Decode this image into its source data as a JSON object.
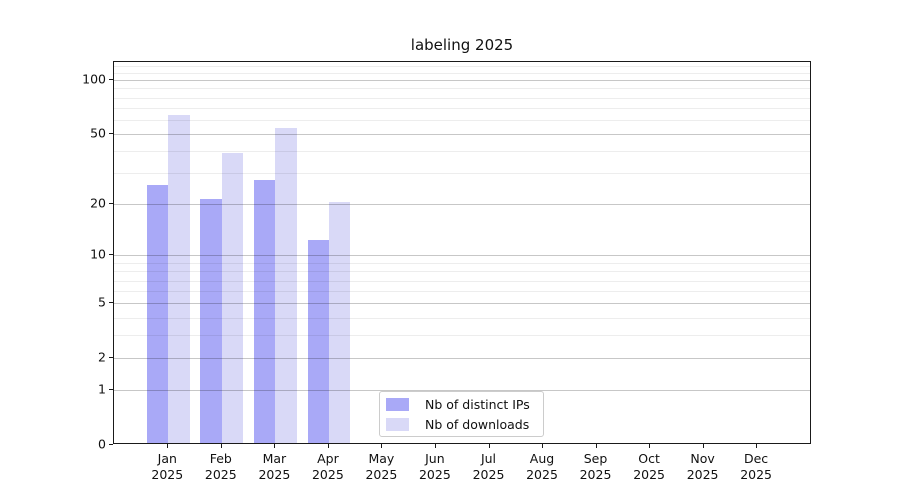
{
  "chart_data": {
    "type": "bar",
    "title": "labeling 2025",
    "categories": [
      "Jan",
      "Feb",
      "Mar",
      "Apr",
      "May",
      "Jun",
      "Jul",
      "Aug",
      "Sep",
      "Oct",
      "Nov",
      "Dec"
    ],
    "category_year_line": "2025",
    "series": [
      {
        "name": "Nb of distinct IPs",
        "color": "#a9a9f7",
        "values": [
          25,
          21,
          27,
          12,
          0,
          0,
          0,
          0,
          0,
          0,
          0,
          0
        ]
      },
      {
        "name": "Nb of downloads",
        "color": "#d9d9f7",
        "values": [
          62,
          38,
          53,
          20,
          0,
          0,
          0,
          0,
          0,
          0,
          0,
          0
        ]
      }
    ],
    "xlabel": "",
    "ylabel": "",
    "yscale": "log1p",
    "ylim": [
      0,
      126
    ],
    "yticks": [
      0,
      1,
      2,
      5,
      10,
      20,
      50,
      100
    ],
    "minor_yticks": [
      3,
      4,
      6,
      7,
      8,
      9,
      30,
      40,
      60,
      70,
      80,
      90,
      110,
      120
    ],
    "grid": true,
    "grid_over_bars": true,
    "legend_position": "lower-center-left",
    "legend_entries": [
      "Nb of distinct IPs",
      "Nb of downloads"
    ]
  }
}
